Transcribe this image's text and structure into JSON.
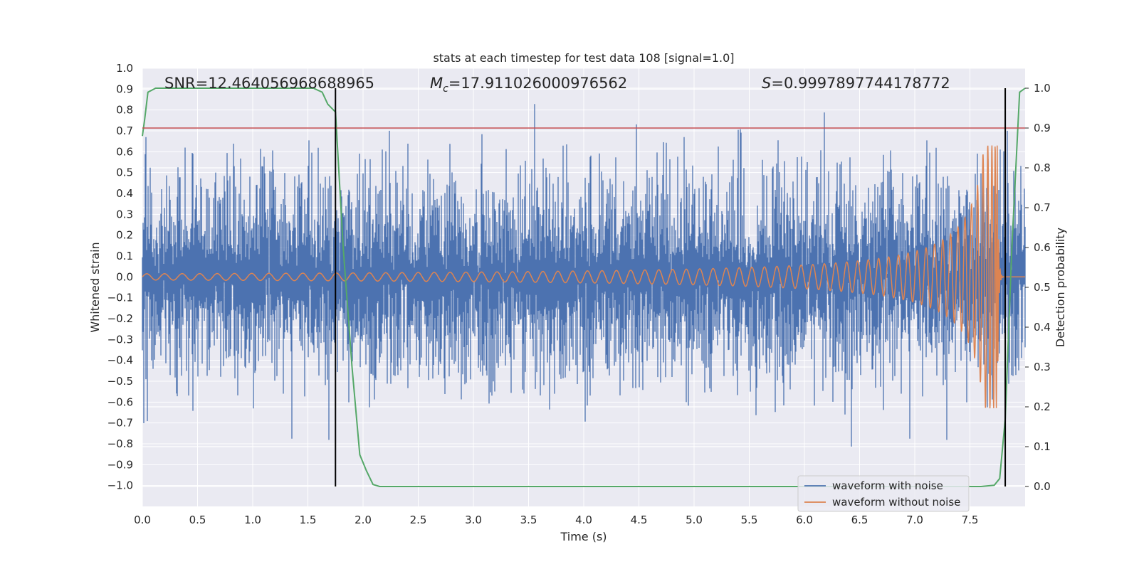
{
  "chart_data": {
    "type": "line",
    "title": "stats at each timestep for test data 108 [signal=1.0]",
    "xlabel": "Time (s)",
    "ylabel": "Whitened strain",
    "y2label": "Detection probability",
    "xlim": [
      0.0,
      8.0
    ],
    "ylim": [
      -1.1,
      1.0
    ],
    "y2lim": [
      -0.05,
      1.05
    ],
    "xticks": [
      "0.0",
      "0.5",
      "1.0",
      "1.5",
      "2.0",
      "2.5",
      "3.0",
      "3.5",
      "4.0",
      "4.5",
      "5.0",
      "5.5",
      "6.0",
      "6.5",
      "7.0",
      "7.5"
    ],
    "yticks": [
      "1.0",
      "0.9",
      "0.8",
      "0.7",
      "0.6",
      "0.5",
      "0.4",
      "0.3",
      "0.2",
      "0.1",
      "0.0",
      "−0.1",
      "−0.2",
      "−0.3",
      "−0.4",
      "−0.5",
      "−0.6",
      "−0.7",
      "−0.8",
      "−0.9",
      "−1.0"
    ],
    "y2ticks": [
      "1.0",
      "0.9",
      "0.8",
      "0.7",
      "0.6",
      "0.5",
      "0.4",
      "0.3",
      "0.2",
      "0.1",
      "0.0"
    ],
    "grid": true,
    "legend_position": "lower-right",
    "annotations": {
      "snr": "SNR=12.464056968688965",
      "mc_symbol": "M",
      "mc_sub": "c",
      "mc_value": "=17.911026000976562",
      "s_symbol": "S",
      "s_value": "=0.9997897744178772"
    },
    "threshold_probability": 0.9,
    "vertical_markers_time": [
      1.75,
      7.82
    ],
    "series": [
      {
        "name": "waveform with noise",
        "color": "#4c72b0",
        "description_values": {
          "envelope_min": -0.97,
          "envelope_max": 0.91,
          "typical_abs": 0.45
        }
      },
      {
        "name": "waveform without noise",
        "color": "#dd8452",
        "description_values": {
          "chirp_start": 0.0,
          "chirp_merger_time": 7.75,
          "start_amp": 0.015,
          "peak_amp": 0.63,
          "peak_min": -0.7
        }
      },
      {
        "name": "detection probability",
        "color": "#55a868",
        "x": [
          0.0,
          0.02,
          0.05,
          0.12,
          0.3,
          1.0,
          1.55,
          1.63,
          1.68,
          1.75,
          1.82,
          1.9,
          1.97,
          2.03,
          2.09,
          2.15,
          2.5,
          5.0,
          7.6,
          7.72,
          7.77,
          7.82,
          7.88,
          7.95,
          8.0
        ],
        "values": [
          0.88,
          0.92,
          0.99,
          1.0,
          1.0,
          1.0,
          1.0,
          0.99,
          0.96,
          0.94,
          0.6,
          0.3,
          0.08,
          0.04,
          0.005,
          0.0,
          0.0,
          0.0,
          0.0,
          0.003,
          0.02,
          0.17,
          0.6,
          0.99,
          1.0
        ]
      }
    ],
    "colors": {
      "background": "#eaeaf2",
      "grid": "#ffffff",
      "threshold": "#c44e52",
      "marker": "#000000"
    }
  }
}
